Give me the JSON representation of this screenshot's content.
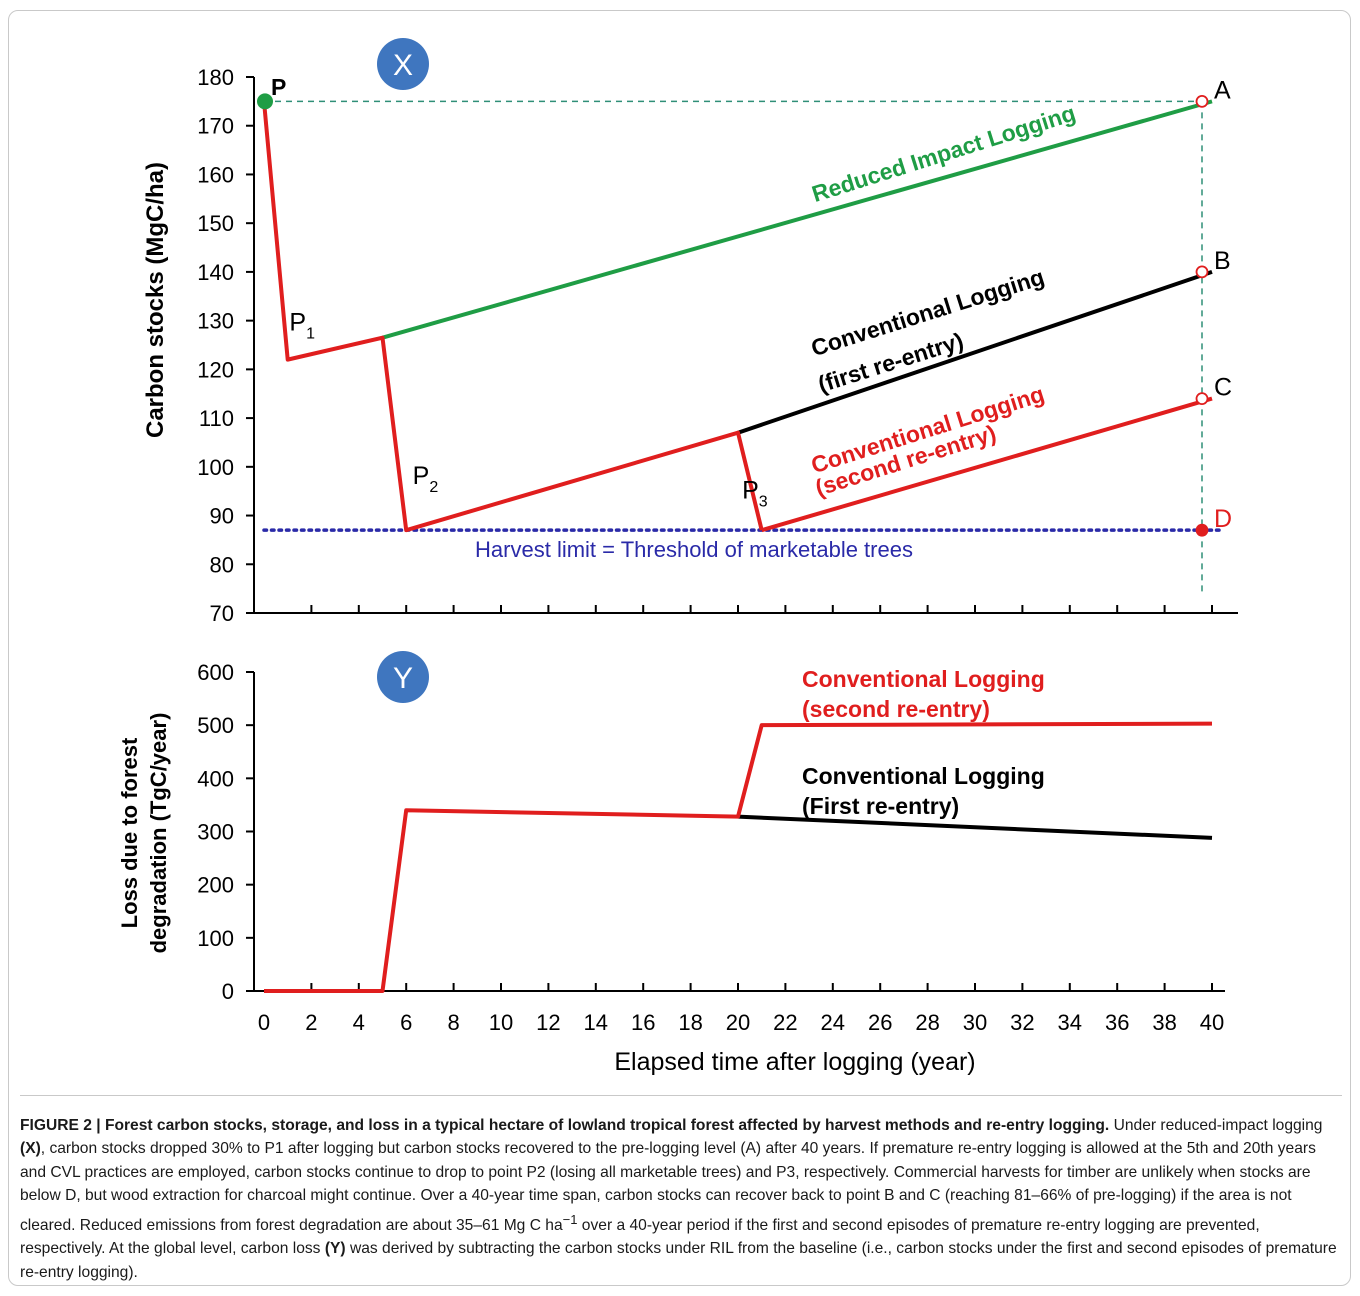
{
  "chart_data": [
    {
      "panel_label": "X",
      "type": "line",
      "xlim": [
        0,
        40
      ],
      "ylim": [
        70,
        180
      ],
      "yticks": [
        70,
        80,
        90,
        100,
        110,
        120,
        130,
        140,
        150,
        160,
        170,
        180
      ],
      "ylabel": "Carbon stocks (MgC/ha)",
      "grid": false,
      "series": [
        {
          "name": "Reduced Impact Logging",
          "color": "#1f9d45",
          "x": [
            5,
            40
          ],
          "y": [
            126.5,
            175
          ]
        },
        {
          "name": "Conventional Logging (first re-entry)",
          "color": "#000000",
          "x": [
            20,
            40
          ],
          "y": [
            107,
            140
          ]
        },
        {
          "name": "Conventional Logging (second re-entry)",
          "color": "#e01e1e",
          "x": [
            21,
            40
          ],
          "y": [
            87,
            114
          ]
        },
        {
          "name": "",
          "color": "#e01e1e",
          "x": [
            0,
            1,
            5,
            6,
            20,
            21
          ],
          "y": [
            175,
            122,
            126.5,
            87,
            107,
            87
          ]
        }
      ],
      "reference_lines": [
        {
          "label": "Harvest limit = Threshold of marketable trees",
          "y": 87,
          "color": "#2a2aa8",
          "style": "dotted"
        },
        {
          "y": 175,
          "color": "#2f8f77",
          "style": "dashed"
        }
      ],
      "vertical_reference": {
        "x": 40,
        "color": "#2f8f77",
        "style": "dashed"
      },
      "points": [
        {
          "label": "P",
          "x": 0,
          "y": 175,
          "color": "#1f9d45",
          "filled": true
        },
        {
          "label": "A",
          "x": 40,
          "y": 175,
          "color": "#e01e1e",
          "filled": false
        },
        {
          "label": "B",
          "x": 40,
          "y": 140,
          "color": "#e01e1e",
          "filled": false
        },
        {
          "label": "C",
          "x": 40,
          "y": 114,
          "color": "#e01e1e",
          "filled": false
        },
        {
          "label": "D",
          "x": 40,
          "y": 87,
          "color": "#e01e1e",
          "filled": true
        }
      ],
      "annotations": [
        {
          "text": "P",
          "sub": "1",
          "x": 2.0,
          "y": 128
        },
        {
          "text": "P",
          "sub": "2",
          "x": 7.2,
          "y": 96.5
        },
        {
          "text": "P",
          "sub": "3",
          "x": 21.1,
          "y": 93.5
        }
      ],
      "series_labels": [
        {
          "lines": [
            "Reduced Impact Logging"
          ],
          "color": "#1f9d45"
        },
        {
          "lines": [
            "Conventional Logging",
            "(first re-entry)"
          ],
          "color": "#000000"
        },
        {
          "lines": [
            "Conventional Logging",
            "(second re-entry)"
          ],
          "color": "#e01e1e"
        }
      ]
    },
    {
      "panel_label": "Y",
      "type": "line",
      "xlim": [
        0,
        40
      ],
      "ylim": [
        0,
        600
      ],
      "xticks": [
        0,
        2,
        4,
        6,
        8,
        10,
        12,
        14,
        16,
        18,
        20,
        22,
        24,
        26,
        28,
        30,
        32,
        34,
        36,
        38,
        40
      ],
      "yticks": [
        0,
        100,
        200,
        300,
        400,
        500,
        600
      ],
      "ylabel": [
        "Loss due to forest",
        "degradation (TgC/year)"
      ],
      "xlabel": "Elapsed time after logging (year)",
      "grid": false,
      "series": [
        {
          "name": "Conventional Logging (First re-entry)",
          "color": "#000000",
          "x": [
            20,
            40
          ],
          "y": [
            328,
            288
          ]
        },
        {
          "name": "Conventional Logging (second re-entry)",
          "color": "#e01e1e",
          "x": [
            0,
            5,
            6,
            20,
            21,
            40
          ],
          "y": [
            0,
            0,
            340,
            328,
            500,
            503
          ]
        }
      ],
      "series_labels": [
        {
          "lines": [
            "Conventional Logging",
            "(second re-entry)"
          ],
          "color": "#e01e1e"
        },
        {
          "lines": [
            "Conventional Logging",
            "(First re-entry)"
          ],
          "color": "#000000"
        }
      ]
    }
  ],
  "caption": {
    "title": "FIGURE 2 | Forest carbon stocks, storage, and loss in a typical hectare of lowland tropical forest affected by harvest methods and re-entry logging.",
    "text_1": " Under reduced-impact logging ",
    "bold_1": "(X)",
    "text_2": ", carbon stocks dropped 30% to P1 after logging but carbon stocks recovered to the pre-logging level (A) after 40 years. If premature re-entry logging is allowed at the 5th and 20th years and CVL practices are employed, carbon stocks continue to drop to point P2 (losing all marketable trees) and P3, respectively. Commercial harvests for timber are unlikely when stocks are below D, but wood extraction for charcoal might continue. Over a 40-year time span, carbon stocks can recover back to point B and C (reaching 81–66% of pre-logging) if the area is not cleared. Reduced emissions from forest degradation are about 35–61 Mg C ha",
    "superscript": "−1",
    "text_3": " over a 40-year period if the first and second episodes of premature re-entry logging are prevented, respectively. At the global level, carbon loss ",
    "bold_2": "(Y)",
    "text_4": " was derived by subtracting the carbon stocks under RIL from the baseline (i.e., carbon stocks under the first and second episodes of premature re-entry logging)."
  }
}
